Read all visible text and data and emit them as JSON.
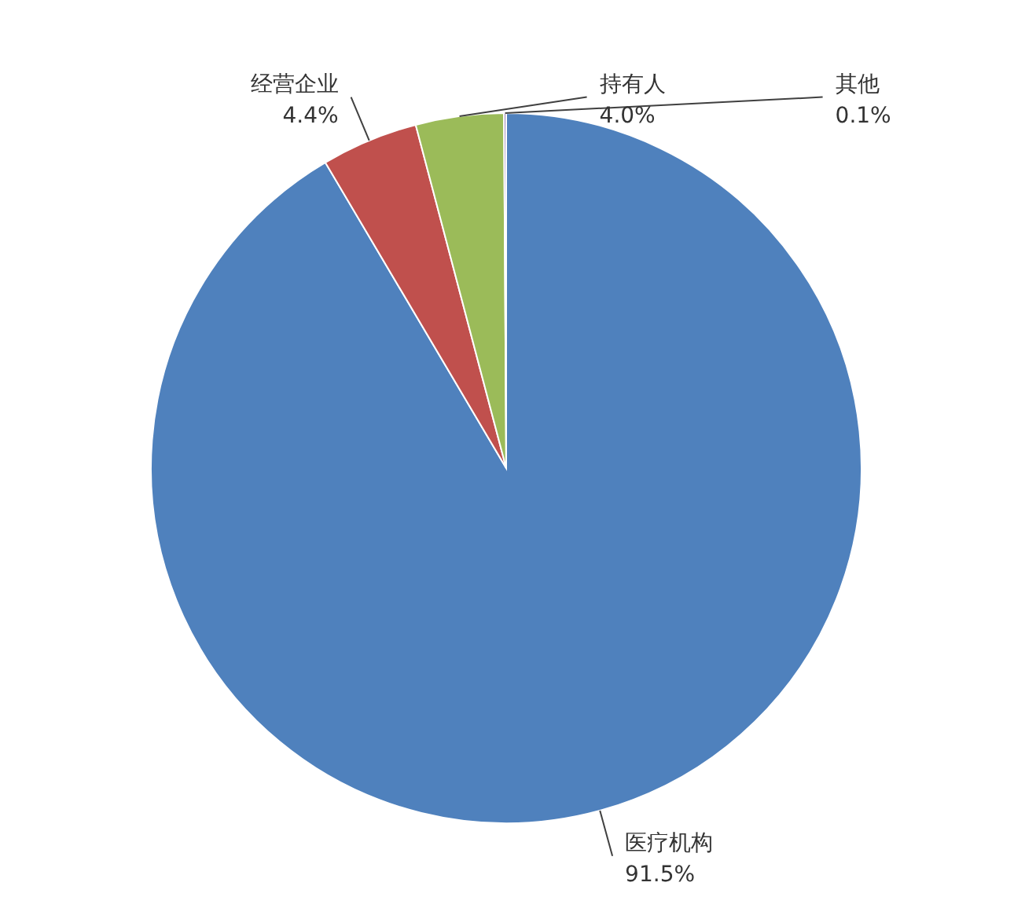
{
  "chart_data": {
    "type": "pie",
    "categories": [
      "医疗机构",
      "经营企业",
      "持有人",
      "其他"
    ],
    "values": [
      91.5,
      4.4,
      4.0,
      0.1
    ],
    "value_labels": [
      "91.5%",
      "4.4%",
      "4.0%",
      "0.1%"
    ],
    "colors": [
      "#4f81bd",
      "#c0504d",
      "#9bbb59",
      "#8064a2"
    ]
  }
}
